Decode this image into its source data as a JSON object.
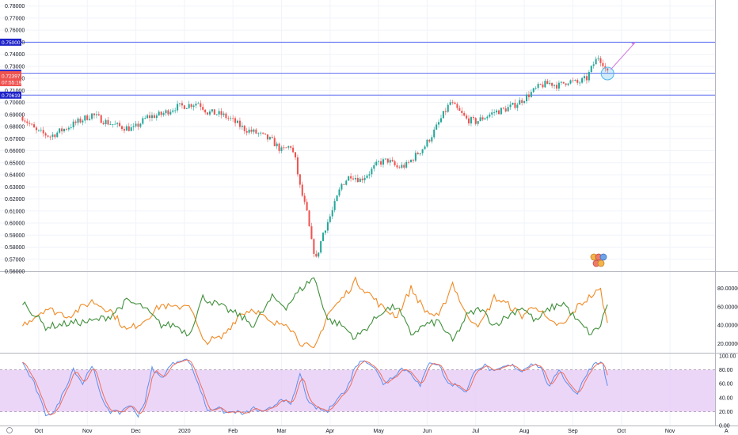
{
  "colors": {
    "up": "#26a69a",
    "down": "#ef5350",
    "level_line": "#5b6cf0",
    "level_label": "#1e22c8",
    "price_label": "#ef5350",
    "band_fill": "#e6c8f5",
    "stoch_k": "#5b8ff0",
    "stoch_d": "#ef6c5a",
    "osc_orange": "#f08a24",
    "osc_green": "#3f8f3a",
    "projection": "#d07be0",
    "circle": "#4db8e8",
    "grid": "#f0f3fa",
    "border": "#b2b5be"
  },
  "price_label": {
    "value": "0.72397",
    "countdown": "07:55:19"
  },
  "chart_data": [
    {
      "type": "candlestick",
      "pane": "price",
      "ylim": [
        0.56,
        0.785
      ],
      "y_ticks": [
        "0.78000",
        "0.77000",
        "0.76000",
        "0.75000",
        "0.74000",
        "0.73000",
        "0.72000",
        "0.71000",
        "0.70000",
        "0.69000",
        "0.68000",
        "0.67000",
        "0.66000",
        "0.65000",
        "0.64000",
        "0.63000",
        "0.62000",
        "0.61000",
        "0.60000",
        "0.59000",
        "0.58000",
        "0.57000",
        "0.56000"
      ],
      "x_labels": [
        "Oct",
        "Nov",
        "Dec",
        "2020",
        "Feb",
        "Mar",
        "Apr",
        "May",
        "Jun",
        "Jul",
        "Aug",
        "Sep",
        "Oct",
        "Nov"
      ],
      "levels": [
        {
          "value": 0.75,
          "label": "0.75000"
        },
        {
          "value": 0.7242,
          "label": "0.72420"
        },
        {
          "value": 0.7061,
          "label": "0.70619"
        }
      ],
      "anchors": [
        [
          0,
          0.688
        ],
        [
          6,
          0.676
        ],
        [
          12,
          0.672
        ],
        [
          18,
          0.678
        ],
        [
          24,
          0.684
        ],
        [
          30,
          0.69
        ],
        [
          36,
          0.684
        ],
        [
          42,
          0.68
        ],
        [
          48,
          0.678
        ],
        [
          54,
          0.688
        ],
        [
          60,
          0.69
        ],
        [
          66,
          0.696
        ],
        [
          72,
          0.698
        ],
        [
          76,
          0.7
        ],
        [
          80,
          0.692
        ],
        [
          86,
          0.69
        ],
        [
          90,
          0.686
        ],
        [
          96,
          0.678
        ],
        [
          102,
          0.674
        ],
        [
          108,
          0.668
        ],
        [
          112,
          0.66
        ],
        [
          116,
          0.664
        ],
        [
          118,
          0.652
        ],
        [
          120,
          0.63
        ],
        [
          123,
          0.608
        ],
        [
          125,
          0.584
        ],
        [
          127,
          0.57
        ],
        [
          130,
          0.592
        ],
        [
          134,
          0.61
        ],
        [
          138,
          0.632
        ],
        [
          142,
          0.64
        ],
        [
          146,
          0.636
        ],
        [
          150,
          0.642
        ],
        [
          154,
          0.65
        ],
        [
          158,
          0.652
        ],
        [
          162,
          0.646
        ],
        [
          166,
          0.648
        ],
        [
          170,
          0.656
        ],
        [
          174,
          0.664
        ],
        [
          178,
          0.676
        ],
        [
          182,
          0.69
        ],
        [
          185,
          0.7
        ],
        [
          188,
          0.694
        ],
        [
          192,
          0.686
        ],
        [
          196,
          0.684
        ],
        [
          200,
          0.688
        ],
        [
          204,
          0.692
        ],
        [
          208,
          0.694
        ],
        [
          212,
          0.697
        ],
        [
          216,
          0.702
        ],
        [
          220,
          0.708
        ],
        [
          224,
          0.714
        ],
        [
          228,
          0.716
        ],
        [
          232,
          0.714
        ],
        [
          236,
          0.718
        ],
        [
          240,
          0.716
        ],
        [
          244,
          0.72
        ],
        [
          247,
          0.732
        ],
        [
          249,
          0.738
        ],
        [
          251,
          0.733
        ],
        [
          252,
          0.728
        ],
        [
          253,
          0.724
        ]
      ],
      "projection": {
        "from": 0.724,
        "to": 0.75
      }
    },
    {
      "type": "line",
      "pane": "oscillator",
      "ylim": [
        10,
        95
      ],
      "y_ticks": [
        "80.00000",
        "60.00000",
        "40.00000",
        "20.00000"
      ],
      "series": [
        {
          "color_key": "osc_orange",
          "anchors": [
            [
              0,
              40
            ],
            [
              10,
              58
            ],
            [
              20,
              50
            ],
            [
              30,
              66
            ],
            [
              38,
              56
            ],
            [
              45,
              34
            ],
            [
              52,
              44
            ],
            [
              60,
              62
            ],
            [
              66,
              58
            ],
            [
              72,
              64
            ],
            [
              78,
              22
            ],
            [
              86,
              26
            ],
            [
              94,
              52
            ],
            [
              100,
              58
            ],
            [
              108,
              40
            ],
            [
              114,
              44
            ],
            [
              120,
              22
            ],
            [
              126,
              12
            ],
            [
              132,
              52
            ],
            [
              138,
              68
            ],
            [
              144,
              88
            ],
            [
              150,
              74
            ],
            [
              156,
              58
            ],
            [
              162,
              50
            ],
            [
              168,
              80
            ],
            [
              174,
              56
            ],
            [
              180,
              48
            ],
            [
              186,
              86
            ],
            [
              192,
              50
            ],
            [
              198,
              40
            ],
            [
              204,
              70
            ],
            [
              210,
              62
            ],
            [
              216,
              50
            ],
            [
              222,
              62
            ],
            [
              228,
              42
            ],
            [
              234,
              40
            ],
            [
              240,
              60
            ],
            [
              246,
              72
            ],
            [
              250,
              78
            ],
            [
              253,
              40
            ]
          ]
        },
        {
          "color_key": "osc_green",
          "anchors": [
            [
              0,
              66
            ],
            [
              10,
              38
            ],
            [
              20,
              42
            ],
            [
              30,
              44
            ],
            [
              38,
              50
            ],
            [
              45,
              66
            ],
            [
              52,
              60
            ],
            [
              60,
              40
            ],
            [
              66,
              40
            ],
            [
              72,
              30
            ],
            [
              78,
              70
            ],
            [
              86,
              60
            ],
            [
              94,
              50
            ],
            [
              100,
              40
            ],
            [
              108,
              70
            ],
            [
              114,
              60
            ],
            [
              120,
              78
            ],
            [
              126,
              92
            ],
            [
              132,
              46
            ],
            [
              138,
              40
            ],
            [
              144,
              26
            ],
            [
              150,
              40
            ],
            [
              156,
              56
            ],
            [
              162,
              60
            ],
            [
              168,
              30
            ],
            [
              174,
              40
            ],
            [
              180,
              44
            ],
            [
              186,
              22
            ],
            [
              192,
              50
            ],
            [
              198,
              58
            ],
            [
              204,
              40
            ],
            [
              210,
              50
            ],
            [
              216,
              60
            ],
            [
              222,
              44
            ],
            [
              228,
              58
            ],
            [
              234,
              64
            ],
            [
              240,
              44
            ],
            [
              246,
              30
            ],
            [
              250,
              40
            ],
            [
              253,
              64
            ]
          ]
        }
      ]
    },
    {
      "type": "line",
      "pane": "stochastic",
      "ylim": [
        0,
        100
      ],
      "y_ticks": [
        "100.00",
        "80.00",
        "60.00",
        "40.00",
        "20.00",
        "0.00"
      ],
      "band": [
        20,
        80
      ],
      "anchors": [
        [
          0,
          90
        ],
        [
          5,
          60
        ],
        [
          10,
          16
        ],
        [
          14,
          20
        ],
        [
          18,
          50
        ],
        [
          22,
          82
        ],
        [
          26,
          60
        ],
        [
          30,
          88
        ],
        [
          34,
          40
        ],
        [
          38,
          20
        ],
        [
          42,
          18
        ],
        [
          46,
          30
        ],
        [
          50,
          15
        ],
        [
          53,
          35
        ],
        [
          56,
          82
        ],
        [
          60,
          68
        ],
        [
          64,
          86
        ],
        [
          68,
          95
        ],
        [
          72,
          93
        ],
        [
          76,
          60
        ],
        [
          80,
          22
        ],
        [
          84,
          26
        ],
        [
          88,
          18
        ],
        [
          92,
          20
        ],
        [
          96,
          16
        ],
        [
          100,
          25
        ],
        [
          104,
          18
        ],
        [
          108,
          26
        ],
        [
          112,
          40
        ],
        [
          116,
          28
        ],
        [
          120,
          74
        ],
        [
          124,
          30
        ],
        [
          128,
          24
        ],
        [
          132,
          20
        ],
        [
          136,
          40
        ],
        [
          140,
          50
        ],
        [
          144,
          86
        ],
        [
          148,
          95
        ],
        [
          152,
          84
        ],
        [
          156,
          60
        ],
        [
          160,
          70
        ],
        [
          164,
          82
        ],
        [
          168,
          76
        ],
        [
          172,
          56
        ],
        [
          176,
          92
        ],
        [
          180,
          88
        ],
        [
          184,
          60
        ],
        [
          188,
          58
        ],
        [
          192,
          48
        ],
        [
          196,
          82
        ],
        [
          200,
          86
        ],
        [
          204,
          76
        ],
        [
          208,
          84
        ],
        [
          212,
          86
        ],
        [
          216,
          78
        ],
        [
          220,
          90
        ],
        [
          224,
          84
        ],
        [
          228,
          54
        ],
        [
          232,
          82
        ],
        [
          236,
          58
        ],
        [
          240,
          46
        ],
        [
          244,
          75
        ],
        [
          248,
          92
        ],
        [
          251,
          88
        ],
        [
          253,
          56
        ]
      ]
    }
  ]
}
